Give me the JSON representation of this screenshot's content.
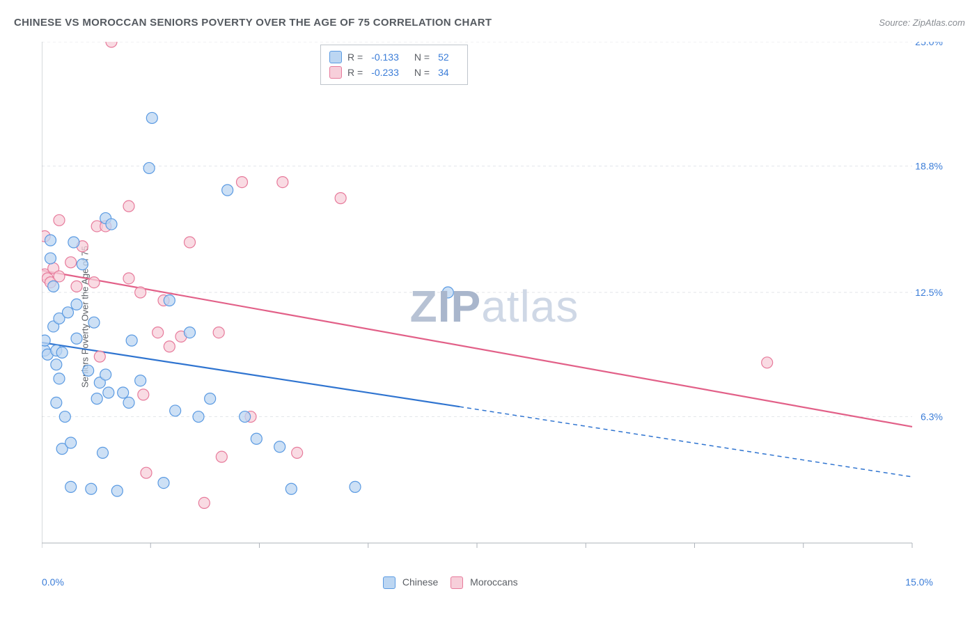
{
  "header": {
    "title": "CHINESE VS MOROCCAN SENIORS POVERTY OVER THE AGE OF 75 CORRELATION CHART",
    "source_label": "Source:",
    "source_value": "ZipAtlas.com"
  },
  "chart": {
    "type": "scatter",
    "ylabel": "Seniors Poverty Over the Age of 75",
    "xlim": [
      0,
      15
    ],
    "ylim": [
      0,
      25
    ],
    "xtick_labels": {
      "min": "0.0%",
      "max": "15.0%"
    },
    "ytick_values": [
      6.3,
      12.5,
      18.8,
      25.0
    ],
    "ytick_labels": [
      "6.3%",
      "12.5%",
      "18.8%",
      "25.0%"
    ],
    "xtick_positions": [
      0,
      1.875,
      3.75,
      5.625,
      7.5,
      9.375,
      11.25,
      13.125,
      15
    ],
    "background_color": "#ffffff",
    "grid_color": "#e3e6ea",
    "axis_color": "#aeb3ba",
    "tick_label_color": "#3b7dd8",
    "marker_radius": 8,
    "marker_stroke_width": 1.2,
    "trend_line_width": 2.2,
    "watermark": "ZIPatlas",
    "series": [
      {
        "name": "Chinese",
        "fill": "#bcd6f2",
        "stroke": "#5a9ae2",
        "line_color": "#2f74d0",
        "r_value": "-0.133",
        "n_value": "52",
        "trend": {
          "x1": 0,
          "y1": 10.0,
          "x2": 7.2,
          "y2": 6.8,
          "x2_ext": 15,
          "y2_ext": 3.3
        },
        "points": [
          [
            0.05,
            9.6
          ],
          [
            0.05,
            10.1
          ],
          [
            0.1,
            9.4
          ],
          [
            0.15,
            15.1
          ],
          [
            0.15,
            14.2
          ],
          [
            0.2,
            12.8
          ],
          [
            0.2,
            10.8
          ],
          [
            0.25,
            9.6
          ],
          [
            0.25,
            8.9
          ],
          [
            0.25,
            7.0
          ],
          [
            0.3,
            8.2
          ],
          [
            0.3,
            11.2
          ],
          [
            0.35,
            9.5
          ],
          [
            0.35,
            4.7
          ],
          [
            0.4,
            6.3
          ],
          [
            0.45,
            11.5
          ],
          [
            0.5,
            5.0
          ],
          [
            0.5,
            2.8
          ],
          [
            0.55,
            15.0
          ],
          [
            0.6,
            11.9
          ],
          [
            0.6,
            10.2
          ],
          [
            0.7,
            13.9
          ],
          [
            0.8,
            8.6
          ],
          [
            0.85,
            2.7
          ],
          [
            0.9,
            11.0
          ],
          [
            0.95,
            7.2
          ],
          [
            1.0,
            8.0
          ],
          [
            1.05,
            4.5
          ],
          [
            1.1,
            16.2
          ],
          [
            1.1,
            8.4
          ],
          [
            1.15,
            7.5
          ],
          [
            1.2,
            15.9
          ],
          [
            1.3,
            2.6
          ],
          [
            1.4,
            7.5
          ],
          [
            1.5,
            7.0
          ],
          [
            1.55,
            10.1
          ],
          [
            1.7,
            8.1
          ],
          [
            1.85,
            18.7
          ],
          [
            1.9,
            21.2
          ],
          [
            2.1,
            3.0
          ],
          [
            2.2,
            12.1
          ],
          [
            2.3,
            6.6
          ],
          [
            2.55,
            10.5
          ],
          [
            2.7,
            6.3
          ],
          [
            2.9,
            7.2
          ],
          [
            3.2,
            17.6
          ],
          [
            3.5,
            6.3
          ],
          [
            3.7,
            5.2
          ],
          [
            4.1,
            4.8
          ],
          [
            4.3,
            2.7
          ],
          [
            5.4,
            2.8
          ],
          [
            7.0,
            12.5
          ]
        ]
      },
      {
        "name": "Moroccans",
        "fill": "#f7cfda",
        "stroke": "#e77a9b",
        "line_color": "#e26088",
        "r_value": "-0.233",
        "n_value": "34",
        "trend": {
          "x1": 0,
          "y1": 13.6,
          "x2": 15,
          "y2": 5.8
        },
        "points": [
          [
            0.05,
            13.4
          ],
          [
            0.05,
            15.3
          ],
          [
            0.1,
            13.2
          ],
          [
            0.15,
            13.0
          ],
          [
            0.2,
            13.7
          ],
          [
            0.3,
            16.1
          ],
          [
            0.3,
            13.3
          ],
          [
            0.5,
            14.0
          ],
          [
            0.6,
            12.8
          ],
          [
            0.7,
            14.8
          ],
          [
            0.9,
            13.0
          ],
          [
            0.95,
            15.8
          ],
          [
            1.0,
            9.3
          ],
          [
            1.1,
            15.8
          ],
          [
            1.2,
            25.0
          ],
          [
            1.5,
            16.8
          ],
          [
            1.5,
            13.2
          ],
          [
            1.7,
            12.5
          ],
          [
            1.75,
            7.4
          ],
          [
            1.8,
            3.5
          ],
          [
            2.0,
            10.5
          ],
          [
            2.1,
            12.1
          ],
          [
            2.2,
            9.8
          ],
          [
            2.4,
            10.3
          ],
          [
            2.55,
            15.0
          ],
          [
            2.8,
            2.0
          ],
          [
            3.05,
            10.5
          ],
          [
            3.1,
            4.3
          ],
          [
            3.45,
            18.0
          ],
          [
            3.6,
            6.3
          ],
          [
            4.15,
            18.0
          ],
          [
            4.4,
            4.5
          ],
          [
            5.15,
            17.2
          ],
          [
            12.5,
            9.0
          ]
        ]
      }
    ],
    "legend_top": {
      "r_label": "R =",
      "n_label": "N ="
    },
    "legend_bottom": {
      "items": [
        "Chinese",
        "Moroccans"
      ]
    }
  }
}
